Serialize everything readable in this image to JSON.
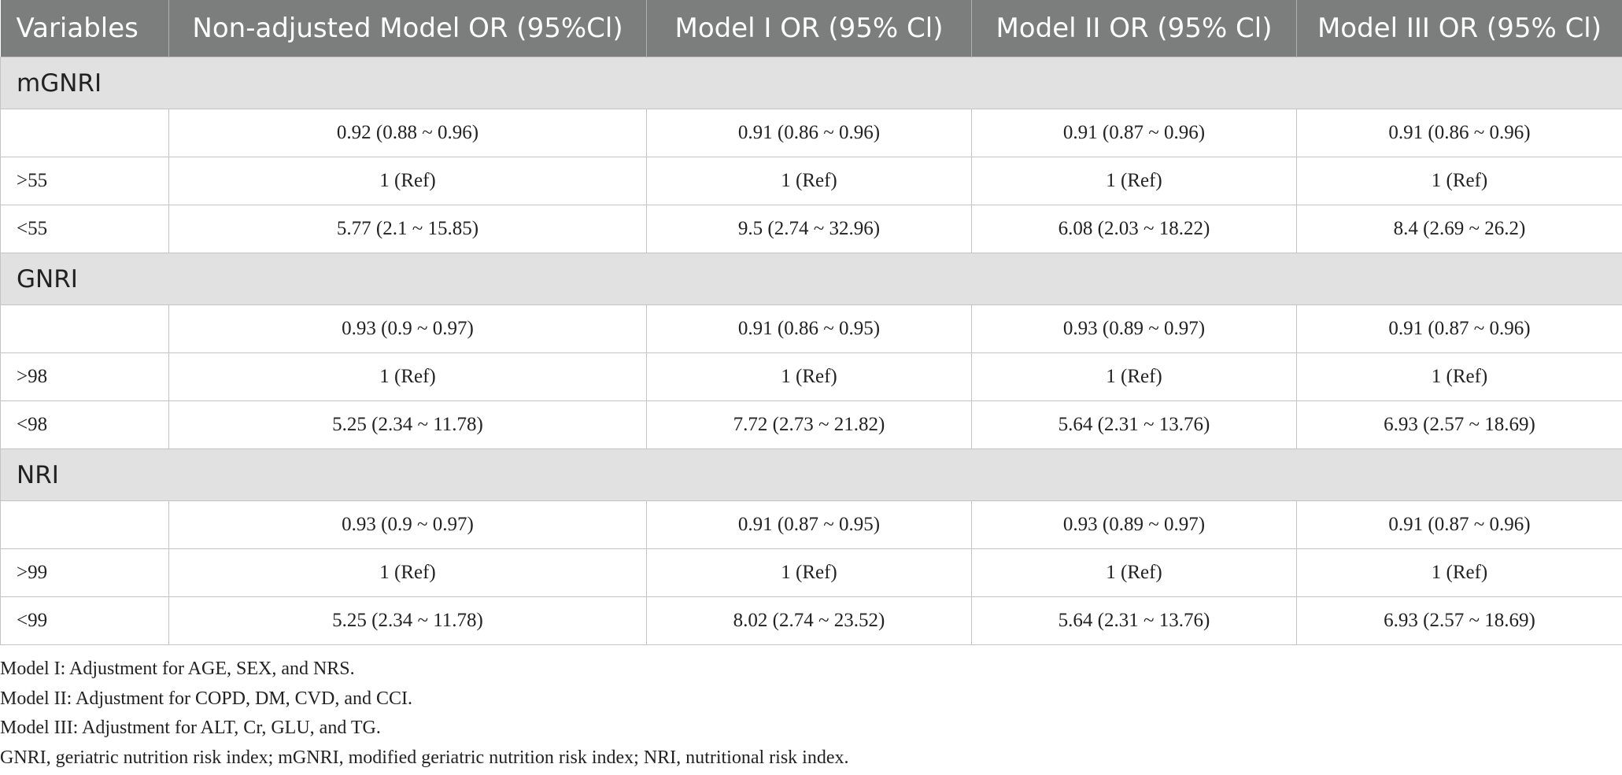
{
  "table": {
    "header": [
      "Variables",
      "Non-adjusted Model OR (95%Cl)",
      "Model I OR (95% Cl)",
      "Model II OR (95% Cl)",
      "Model III OR (95% Cl)"
    ],
    "groups": [
      {
        "label": "mGNRI",
        "rows": [
          [
            null,
            "0.92 (0.88 ~ 0.96)",
            "0.91 (0.86 ~ 0.96)",
            "0.91 (0.87 ~ 0.96)",
            "0.91 (0.86 ~ 0.96)"
          ],
          [
            ">55",
            "1 (Ref)",
            "1 (Ref)",
            "1 (Ref)",
            "1 (Ref)"
          ],
          [
            "<55",
            "5.77 (2.1 ~ 15.85)",
            "9.5 (2.74 ~ 32.96)",
            "6.08 (2.03 ~ 18.22)",
            "8.4 (2.69 ~ 26.2)"
          ]
        ]
      },
      {
        "label": "GNRI",
        "rows": [
          [
            null,
            "0.93 (0.9 ~ 0.97)",
            "0.91 (0.86 ~ 0.95)",
            "0.93 (0.89 ~ 0.97)",
            "0.91 (0.87 ~ 0.96)"
          ],
          [
            ">98",
            "1 (Ref)",
            "1 (Ref)",
            "1 (Ref)",
            "1 (Ref)"
          ],
          [
            "<98",
            "5.25 (2.34 ~ 11.78)",
            "7.72 (2.73 ~ 21.82)",
            "5.64 (2.31 ~ 13.76)",
            "6.93 (2.57 ~ 18.69)"
          ]
        ]
      },
      {
        "label": "NRI",
        "rows": [
          [
            null,
            "0.93 (0.9 ~ 0.97)",
            "0.91 (0.87 ~ 0.95)",
            "0.93 (0.89 ~ 0.97)",
            "0.91 (0.87 ~ 0.96)"
          ],
          [
            ">99",
            "1 (Ref)",
            "1 (Ref)",
            "1 (Ref)",
            "1 (Ref)"
          ],
          [
            "<99",
            "5.25 (2.34 ~ 11.78)",
            "8.02 (2.74 ~ 23.52)",
            "5.64 (2.31 ~ 13.76)",
            "6.93 (2.57 ~ 18.69)"
          ]
        ]
      }
    ]
  },
  "footnotes": [
    "Model I: Adjustment for AGE, SEX, and NRS.",
    "Model II: Adjustment for COPD, DM, CVD, and CCI.",
    "Model III: Adjustment for ALT, Cr, GLU, and TG.",
    "GNRI, geriatric nutrition risk index; mGNRI, modified geriatric nutrition risk index; NRI, nutritional risk index."
  ]
}
